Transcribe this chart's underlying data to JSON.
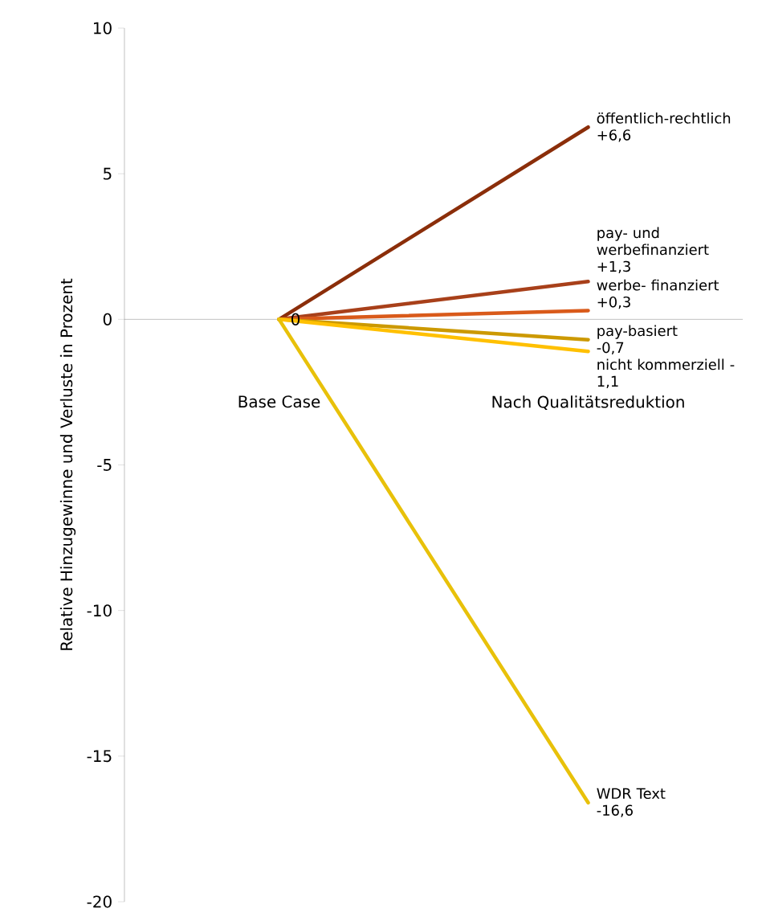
{
  "chart_data": {
    "type": "line",
    "ylabel": "Relative Hinzugewinne und Verluste in Prozent",
    "categories": [
      "Base Case",
      "Nach Qualitätsreduktion"
    ],
    "ylim": [
      -20,
      10
    ],
    "yticks": [
      -20,
      -15,
      -10,
      -5,
      0,
      5,
      10
    ],
    "line_style": "solid",
    "series": [
      {
        "name": "öffentlich-rechtlich",
        "color": "#8b2e0a",
        "values": [
          0,
          6.6
        ],
        "value_labels": [
          "0",
          "+6,6"
        ]
      },
      {
        "name": "pay- und werbefinanziert",
        "color": "#a8401a",
        "values": [
          0,
          1.3
        ],
        "value_labels": [
          null,
          "+1,3"
        ]
      },
      {
        "name": "werbe- finanziert",
        "color": "#d95a1a",
        "values": [
          0,
          0.3
        ],
        "value_labels": [
          null,
          "+0,3"
        ]
      },
      {
        "name": "pay-basiert",
        "color": "#cc9900",
        "values": [
          0,
          -0.7
        ],
        "value_labels": [
          null,
          "-0,7"
        ]
      },
      {
        "name": "nicht kommerziell",
        "color": "#ffc000",
        "values": [
          0,
          -1.1
        ],
        "value_labels": [
          null,
          "-1,1"
        ]
      },
      {
        "name": "WDR Text",
        "color": "#e8c10a",
        "values": [
          0,
          -16.6
        ],
        "value_labels": [
          null,
          "-16,6"
        ]
      }
    ]
  }
}
